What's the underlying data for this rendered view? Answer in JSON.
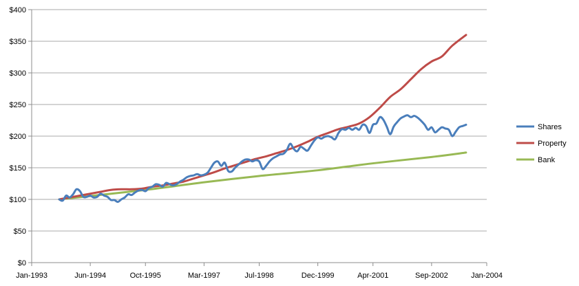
{
  "chart_data": {
    "type": "line",
    "title": "",
    "xlabel": "",
    "ylabel": "",
    "ylim": [
      0,
      400
    ],
    "yticks": [
      0,
      50,
      100,
      150,
      200,
      250,
      300,
      350,
      400
    ],
    "ytick_labels": [
      "$0",
      "$50",
      "$100",
      "$150",
      "$200",
      "$250",
      "$300",
      "$350",
      "$400"
    ],
    "xlim": [
      "1993-01",
      "2004-01"
    ],
    "xticks": [
      "1993-01",
      "1994-06",
      "1995-10",
      "1997-03",
      "1998-07",
      "1999-12",
      "2001-04",
      "2002-09",
      "2004-01"
    ],
    "xtick_labels": [
      "Jan-1993",
      "Jun-1994",
      "Oct-1995",
      "Mar-1997",
      "Jul-1998",
      "Dec-1999",
      "Apr-2001",
      "Sep-2002",
      "Jan-2004"
    ],
    "grid": "horizontal",
    "legend_position": "right",
    "series": [
      {
        "name": "Shares",
        "color": "#4a7ebb",
        "points": [
          [
            "1993-09",
            100
          ],
          [
            "1993-10",
            98
          ],
          [
            "1993-11",
            106
          ],
          [
            "1993-12",
            103
          ],
          [
            "1994-01",
            108
          ],
          [
            "1994-02",
            116
          ],
          [
            "1994-03",
            113
          ],
          [
            "1994-04",
            104
          ],
          [
            "1994-05",
            104
          ],
          [
            "1994-06",
            106
          ],
          [
            "1994-07",
            103
          ],
          [
            "1994-08",
            104
          ],
          [
            "1994-09",
            109
          ],
          [
            "1994-10",
            106
          ],
          [
            "1994-11",
            104
          ],
          [
            "1994-12",
            99
          ],
          [
            "1995-01",
            99
          ],
          [
            "1995-02",
            96
          ],
          [
            "1995-03",
            100
          ],
          [
            "1995-04",
            103
          ],
          [
            "1995-05",
            108
          ],
          [
            "1995-06",
            107
          ],
          [
            "1995-07",
            111
          ],
          [
            "1995-08",
            114
          ],
          [
            "1995-09",
            115
          ],
          [
            "1995-10",
            113
          ],
          [
            "1995-11",
            118
          ],
          [
            "1995-12",
            120
          ],
          [
            "1996-01",
            124
          ],
          [
            "1996-02",
            123
          ],
          [
            "1996-03",
            120
          ],
          [
            "1996-04",
            126
          ],
          [
            "1996-05",
            124
          ],
          [
            "1996-06",
            122
          ],
          [
            "1996-07",
            124
          ],
          [
            "1996-08",
            128
          ],
          [
            "1996-09",
            131
          ],
          [
            "1996-10",
            135
          ],
          [
            "1996-11",
            137
          ],
          [
            "1996-12",
            138
          ],
          [
            "1997-01",
            140
          ],
          [
            "1997-02",
            138
          ],
          [
            "1997-03",
            139
          ],
          [
            "1997-04",
            142
          ],
          [
            "1997-05",
            150
          ],
          [
            "1997-06",
            158
          ],
          [
            "1997-07",
            160
          ],
          [
            "1997-08",
            153
          ],
          [
            "1997-09",
            158
          ],
          [
            "1997-10",
            145
          ],
          [
            "1997-11",
            144
          ],
          [
            "1997-12",
            150
          ],
          [
            "1998-01",
            155
          ],
          [
            "1998-02",
            160
          ],
          [
            "1998-03",
            163
          ],
          [
            "1998-04",
            163
          ],
          [
            "1998-05",
            160
          ],
          [
            "1998-06",
            162
          ],
          [
            "1998-07",
            160
          ],
          [
            "1998-08",
            148
          ],
          [
            "1998-09",
            153
          ],
          [
            "1998-10",
            160
          ],
          [
            "1998-11",
            165
          ],
          [
            "1998-12",
            168
          ],
          [
            "1999-01",
            171
          ],
          [
            "1999-02",
            172
          ],
          [
            "1999-03",
            178
          ],
          [
            "1999-04",
            188
          ],
          [
            "1999-05",
            180
          ],
          [
            "1999-06",
            176
          ],
          [
            "1999-07",
            183
          ],
          [
            "1999-08",
            180
          ],
          [
            "1999-09",
            177
          ],
          [
            "1999-10",
            185
          ],
          [
            "1999-11",
            193
          ],
          [
            "1999-12",
            198
          ],
          [
            "2000-01",
            196
          ],
          [
            "2000-02",
            199
          ],
          [
            "2000-03",
            200
          ],
          [
            "2000-04",
            198
          ],
          [
            "2000-05",
            195
          ],
          [
            "2000-06",
            205
          ],
          [
            "2000-07",
            211
          ],
          [
            "2000-08",
            210
          ],
          [
            "2000-09",
            213
          ],
          [
            "2000-10",
            210
          ],
          [
            "2000-11",
            213
          ],
          [
            "2000-12",
            210
          ],
          [
            "2001-01",
            218
          ],
          [
            "2001-02",
            216
          ],
          [
            "2001-03",
            205
          ],
          [
            "2001-04",
            218
          ],
          [
            "2001-05",
            220
          ],
          [
            "2001-06",
            230
          ],
          [
            "2001-07",
            226
          ],
          [
            "2001-08",
            215
          ],
          [
            "2001-09",
            203
          ],
          [
            "2001-10",
            215
          ],
          [
            "2001-11",
            222
          ],
          [
            "2001-12",
            228
          ],
          [
            "2002-01",
            231
          ],
          [
            "2002-02",
            233
          ],
          [
            "2002-03",
            230
          ],
          [
            "2002-04",
            232
          ],
          [
            "2002-05",
            229
          ],
          [
            "2002-06",
            224
          ],
          [
            "2002-07",
            218
          ],
          [
            "2002-08",
            210
          ],
          [
            "2002-09",
            214
          ],
          [
            "2002-10",
            206
          ],
          [
            "2002-11",
            210
          ],
          [
            "2002-12",
            214
          ],
          [
            "2003-01",
            212
          ],
          [
            "2003-02",
            210
          ],
          [
            "2003-03",
            200
          ],
          [
            "2003-04",
            207
          ],
          [
            "2003-05",
            214
          ],
          [
            "2003-06",
            216
          ],
          [
            "2003-07",
            218
          ]
        ]
      },
      {
        "name": "Property",
        "color": "#be4b48",
        "points": [
          [
            "1993-09",
            100
          ],
          [
            "1993-12",
            103
          ],
          [
            "1994-03",
            106
          ],
          [
            "1994-06",
            109
          ],
          [
            "1994-09",
            112
          ],
          [
            "1994-12",
            115
          ],
          [
            "1995-03",
            116
          ],
          [
            "1995-06",
            116
          ],
          [
            "1995-09",
            117
          ],
          [
            "1995-12",
            120
          ],
          [
            "1996-03",
            122
          ],
          [
            "1996-06",
            125
          ],
          [
            "1996-09",
            128
          ],
          [
            "1996-12",
            133
          ],
          [
            "1997-03",
            138
          ],
          [
            "1997-06",
            143
          ],
          [
            "1997-09",
            149
          ],
          [
            "1997-12",
            154
          ],
          [
            "1998-03",
            159
          ],
          [
            "1998-06",
            164
          ],
          [
            "1998-09",
            168
          ],
          [
            "1998-12",
            173
          ],
          [
            "1999-03",
            178
          ],
          [
            "1999-06",
            184
          ],
          [
            "1999-09",
            191
          ],
          [
            "1999-12",
            199
          ],
          [
            "2000-03",
            205
          ],
          [
            "2000-06",
            211
          ],
          [
            "2000-09",
            215
          ],
          [
            "2000-12",
            220
          ],
          [
            "2001-03",
            230
          ],
          [
            "2001-06",
            245
          ],
          [
            "2001-09",
            262
          ],
          [
            "2001-12",
            274
          ],
          [
            "2002-03",
            290
          ],
          [
            "2002-06",
            306
          ],
          [
            "2002-09",
            318
          ],
          [
            "2002-12",
            326
          ],
          [
            "2003-03",
            343
          ],
          [
            "2003-07",
            360
          ]
        ]
      },
      {
        "name": "Bank",
        "color": "#98b954",
        "points": [
          [
            "1993-09",
            100
          ],
          [
            "1995-10",
            115
          ],
          [
            "1997-03",
            127
          ],
          [
            "1998-07",
            137
          ],
          [
            "1999-12",
            146
          ],
          [
            "2001-04",
            157
          ],
          [
            "2002-09",
            167
          ],
          [
            "2003-07",
            174
          ]
        ]
      }
    ]
  },
  "legend": {
    "items": [
      "Shares",
      "Property",
      "Bank"
    ]
  }
}
